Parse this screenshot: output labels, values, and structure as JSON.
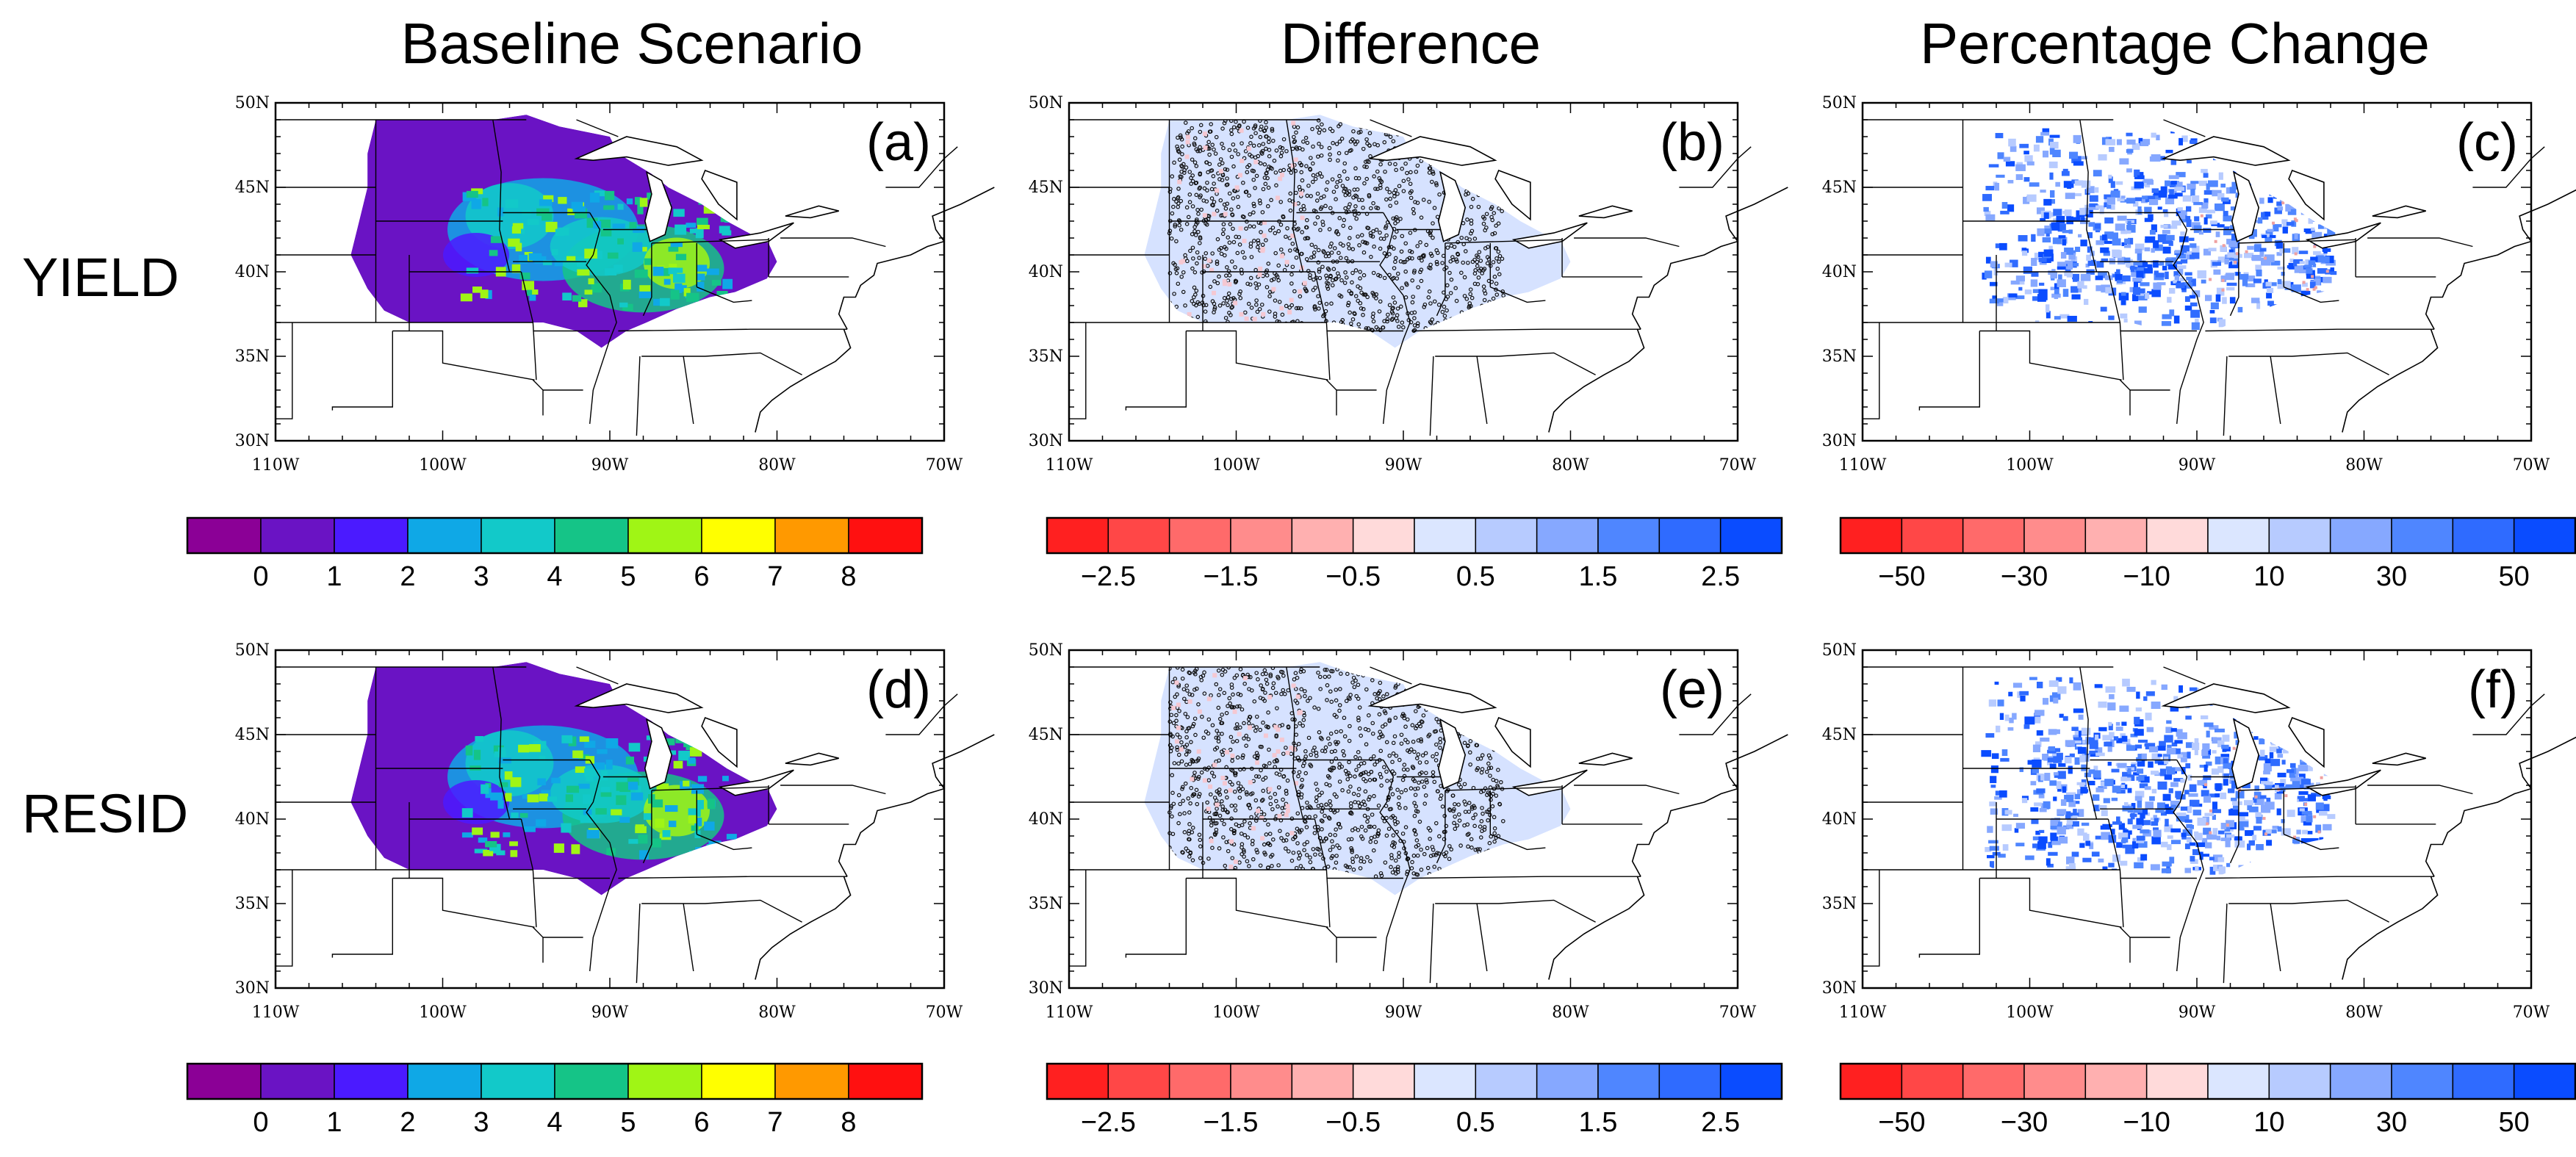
{
  "columns": [
    "Baseline Scenario",
    "Difference",
    "Percentage Change"
  ],
  "rows": [
    "YIELD",
    "RESID"
  ],
  "panel_letters": [
    "(a)",
    "(b)",
    "(c)",
    "(d)",
    "(e)",
    "(f)"
  ],
  "lat_labels": [
    "50N",
    "45N",
    "40N",
    "35N",
    "30N"
  ],
  "lon_labels": [
    "110W",
    "100W",
    "90W",
    "80W",
    "70W"
  ],
  "colorbars": {
    "baseline": {
      "colors": [
        "#8b0096",
        "#6a13c4",
        "#4b1aff",
        "#0fa8e6",
        "#12c9c9",
        "#15c487",
        "#a0f515",
        "#ffff00",
        "#ff9900",
        "#ff1010"
      ],
      "labels": [
        "0",
        "1",
        "2",
        "3",
        "4",
        "5",
        "6",
        "7",
        "8"
      ]
    },
    "difference": {
      "colors": [
        "#ff2020",
        "#ff4747",
        "#ff6a6a",
        "#ff8c8c",
        "#ffb0b0",
        "#ffdada",
        "#dbe6ff",
        "#b7cbff",
        "#86a8ff",
        "#4f86ff",
        "#2f6bff",
        "#0a4cff"
      ],
      "labels": [
        "−2.5",
        "−1.5",
        "−0.5",
        "0.5",
        "1.5",
        "2.5"
      ]
    },
    "percent": {
      "colors": [
        "#ff2020",
        "#ff4747",
        "#ff6a6a",
        "#ff8c8c",
        "#ffb0b0",
        "#ffdada",
        "#dbe6ff",
        "#b7cbff",
        "#86a8ff",
        "#4f86ff",
        "#2f6bff",
        "#0a4cff"
      ],
      "labels": [
        "−50",
        "−30",
        "−10",
        "10",
        "30",
        "50"
      ]
    }
  }
}
